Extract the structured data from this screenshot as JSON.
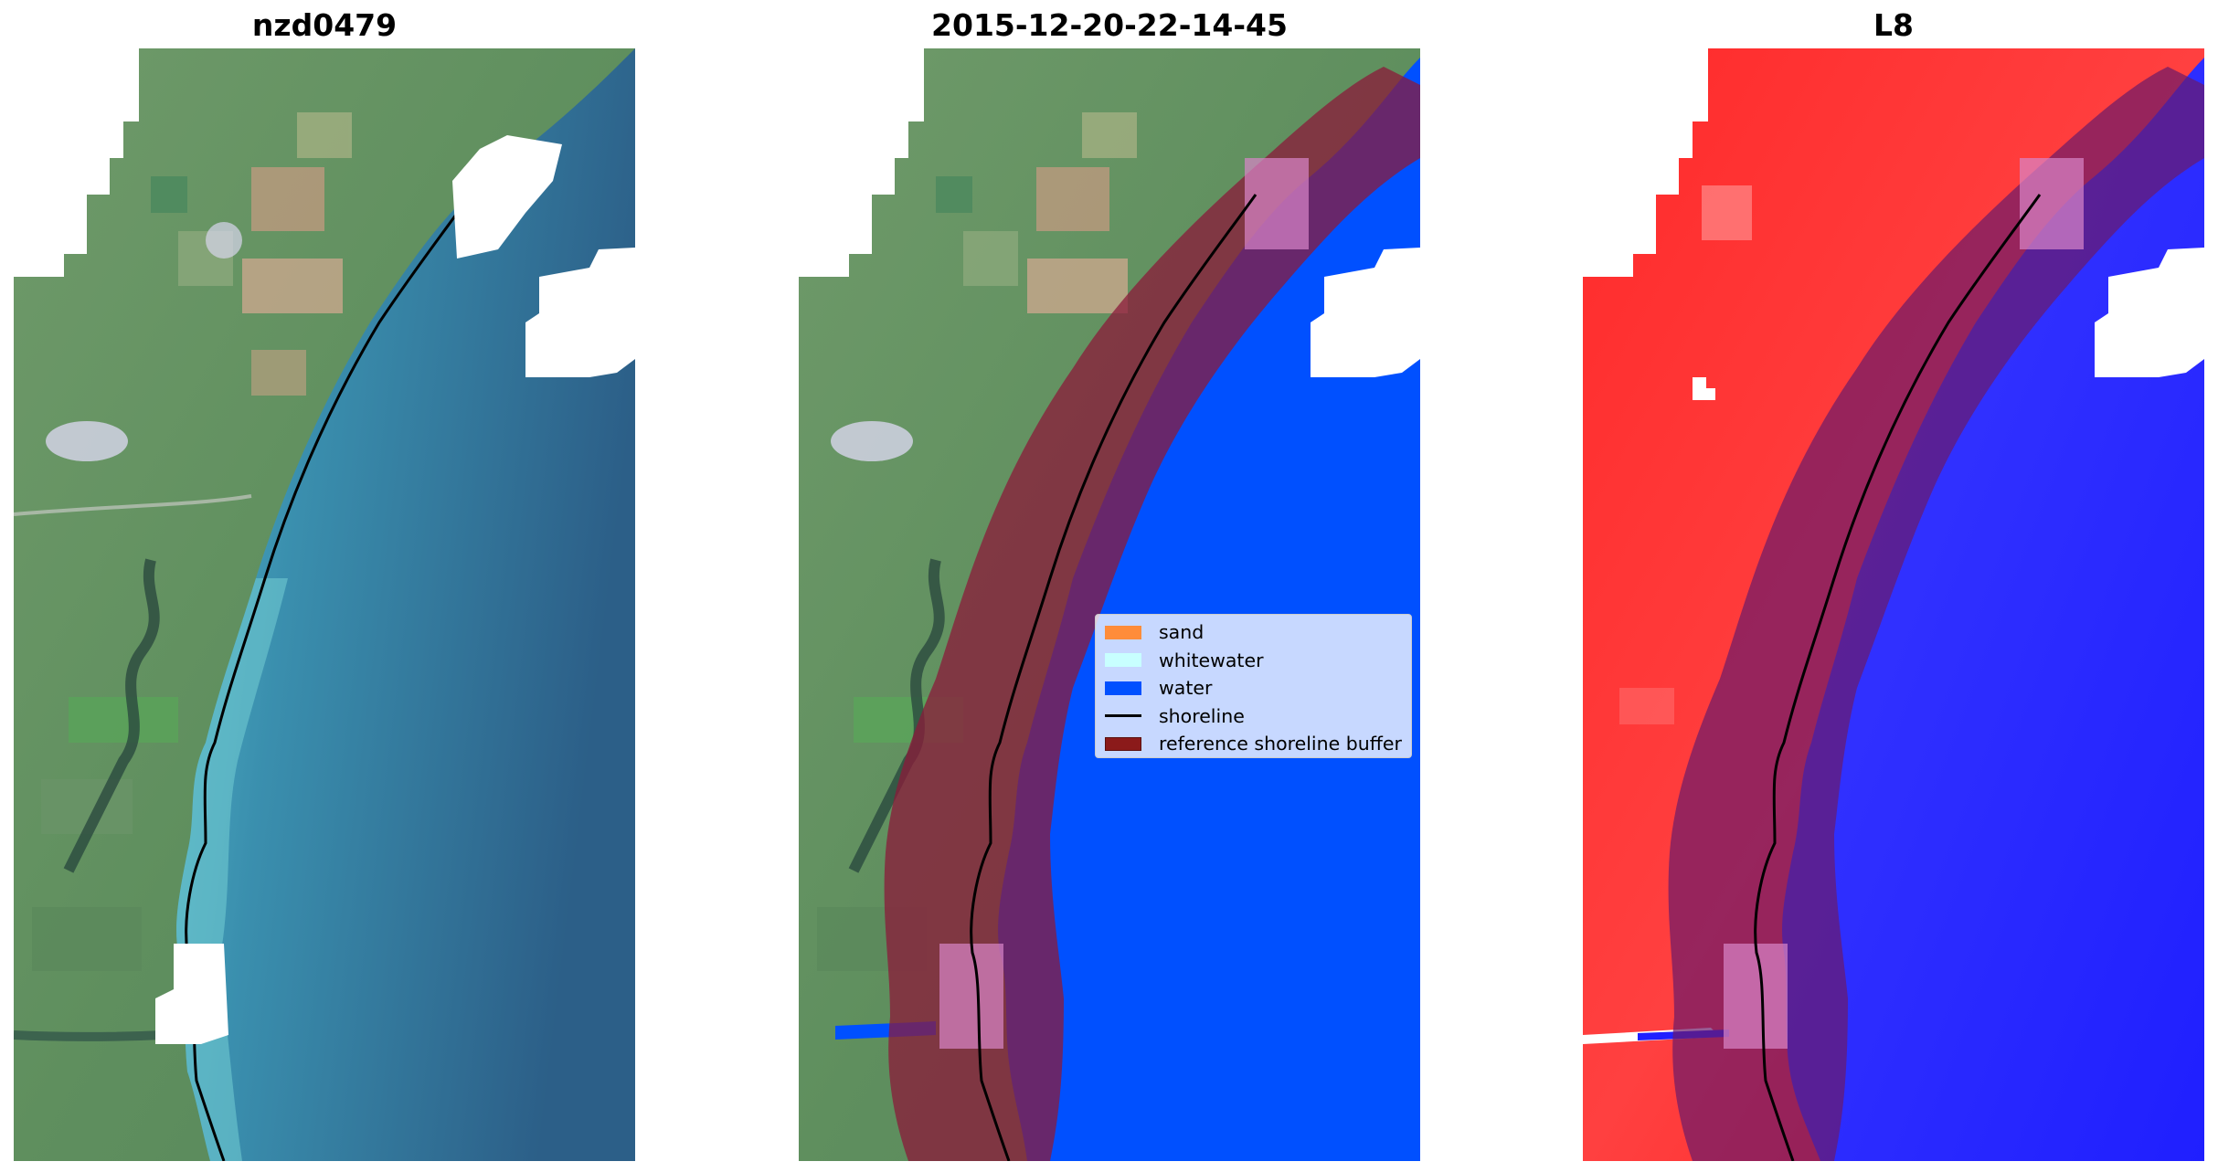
{
  "panels": [
    {
      "title": "nzd0479"
    },
    {
      "title": "2015-12-20-22-14-45"
    },
    {
      "title": "L8"
    }
  ],
  "legend": {
    "items": [
      {
        "label": "sand",
        "color": "#ff8c3a",
        "kind": "patch"
      },
      {
        "label": "whitewater",
        "color": "#c8ffff",
        "kind": "patch"
      },
      {
        "label": "water",
        "color": "#0050ff",
        "kind": "patch"
      },
      {
        "label": "shoreline",
        "color": "#000000",
        "kind": "line"
      },
      {
        "label": "reference shoreline buffer",
        "color": "#8b1a1a",
        "kind": "patch"
      }
    ]
  },
  "colors": {
    "land": "#5f8f62",
    "shallow_water": "#3f9fb2",
    "deep_water": "#2f6a8e",
    "classified_water": "#0050ff",
    "buffer": "#8b1a2a",
    "red_land": "#ff1a1a",
    "blue_water": "#2222ff",
    "nodata": "#ffffff"
  }
}
